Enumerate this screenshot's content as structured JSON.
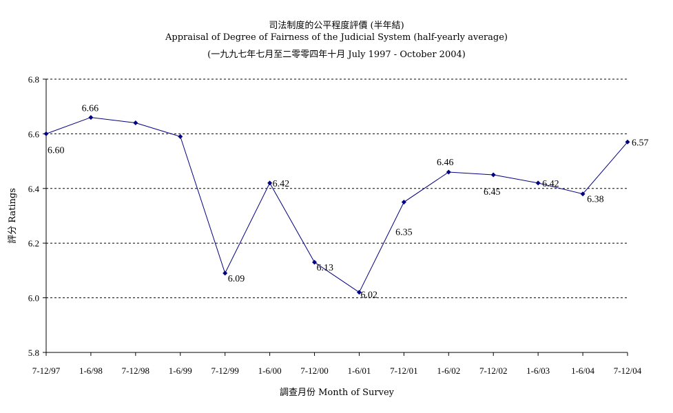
{
  "title_zh": "司法制度的公平程度評價 (半年結)",
  "title_en": "Appraisal of Degree of Fairness of the Judicial System (half-yearly average)",
  "subtitle": "(一九九七年七月至二零零四年十月 July 1997 -  October 2004)",
  "colors": {
    "line": "#000080",
    "marker": "#000080",
    "grid": "#000000",
    "axis": "#000000"
  },
  "chart_data": {
    "type": "line",
    "xlabel": "調查月份 Month of Survey",
    "ylabel": "評分 Ratings",
    "ylim": [
      5.8,
      6.8
    ],
    "yticks": [
      "5.8",
      "6.0",
      "6.2",
      "6.4",
      "6.6",
      "6.8"
    ],
    "grid": "horizontal dashed",
    "categories": [
      "7-12/97",
      "1-6/98",
      "7-12/98",
      "1-6/99",
      "7-12/99",
      "1-6/00",
      "7-12/00",
      "1-6/01",
      "7-12/01",
      "1-6/02",
      "7-12/02",
      "1-6/03",
      "1-6/04",
      "7-12/04"
    ],
    "values": [
      6.6,
      6.66,
      6.64,
      6.59,
      6.09,
      6.42,
      6.13,
      6.02,
      6.35,
      6.46,
      6.45,
      6.42,
      6.38,
      6.57
    ],
    "data_labels": [
      "6.60",
      "6.66",
      "",
      "",
      "6.09",
      "6.42",
      "6.13",
      "6.02",
      "6.35",
      "6.46",
      "6.45",
      "6.42",
      "6.38",
      "6.57"
    ]
  }
}
